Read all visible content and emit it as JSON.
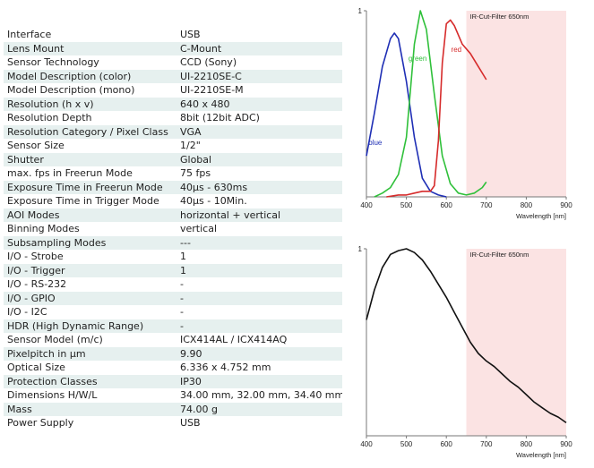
{
  "specs": [
    {
      "label": "Interface",
      "value": "USB"
    },
    {
      "label": "Lens Mount",
      "value": "C-Mount"
    },
    {
      "label": "Sensor Technology",
      "value": "CCD (Sony)"
    },
    {
      "label": "Model Description (color)",
      "value": "UI-2210SE-C"
    },
    {
      "label": "Model Description (mono)",
      "value": "UI-2210SE-M"
    },
    {
      "label": "Resolution (h x v)",
      "value": "640 x 480"
    },
    {
      "label": "Resolution Depth",
      "value": "8bit (12bit ADC)"
    },
    {
      "label": "Resolution Category / Pixel Class",
      "value": "VGA"
    },
    {
      "label": "Sensor Size",
      "value": "1/2\""
    },
    {
      "label": "Shutter",
      "value": "Global"
    },
    {
      "label": "max. fps in Freerun Mode",
      "value": "75 fps"
    },
    {
      "label": "Exposure Time in Freerun Mode",
      "value": "40µs - 630ms"
    },
    {
      "label": "Exposure Time in Trigger Mode",
      "value": "40µs - 10Min."
    },
    {
      "label": "AOI Modes",
      "value": "horizontal + vertical"
    },
    {
      "label": "Binning Modes",
      "value": "vertical"
    },
    {
      "label": "Subsampling Modes",
      "value": "---"
    },
    {
      "label": "I/O - Strobe",
      "value": "1"
    },
    {
      "label": "I/O - Trigger",
      "value": "1"
    },
    {
      "label": "I/O - RS-232",
      "value": "-"
    },
    {
      "label": "I/O - GPIO",
      "value": "-"
    },
    {
      "label": "I/O - I2C",
      "value": "-"
    },
    {
      "label": "HDR (High Dynamic Range)",
      "value": "-"
    },
    {
      "label": "Sensor Model (m/c)",
      "value": "ICX414AL / ICX414AQ"
    },
    {
      "label": "Pixelpitch in µm",
      "value": "9.90"
    },
    {
      "label": "Optical Size",
      "value": "6.336 x 4.752 mm"
    },
    {
      "label": "Protection Classes",
      "value": "IP30"
    },
    {
      "label": "Dimensions H/W/L",
      "value": "34.00 mm, 32.00 mm, 34.40 mm"
    },
    {
      "label": "Mass",
      "value": "74.00 g"
    },
    {
      "label": "Power Supply",
      "value": "USB"
    }
  ],
  "colors": {
    "row_alt": "#e6f0ef",
    "ir_region": "#fbe3e3",
    "blue": "#1f2fb5",
    "green": "#2fc03a",
    "red": "#d62b2b",
    "mono": "#111111"
  },
  "chart_data": [
    {
      "type": "line",
      "xlim": [
        400,
        900
      ],
      "ylim": [
        0,
        1
      ],
      "xticks": [
        "400",
        "500",
        "600",
        "700",
        "800",
        "900"
      ],
      "yticks": [
        "1"
      ],
      "xlabel": "Wavelength [nm]",
      "shaded_region": {
        "from": 650,
        "to": 900,
        "label": "IR-Cut-Filter 650nm"
      },
      "series": [
        {
          "name": "blue",
          "color": "#1f2fb5",
          "x": [
            400,
            420,
            440,
            460,
            470,
            480,
            500,
            520,
            540,
            560,
            580,
            600
          ],
          "y": [
            0.22,
            0.45,
            0.7,
            0.85,
            0.88,
            0.85,
            0.62,
            0.32,
            0.1,
            0.03,
            0.01,
            0.0
          ]
        },
        {
          "name": "green",
          "color": "#2fc03a",
          "x": [
            420,
            440,
            460,
            480,
            500,
            520,
            535,
            550,
            570,
            590,
            610,
            630,
            650,
            670,
            690,
            700
          ],
          "y": [
            0.0,
            0.02,
            0.05,
            0.12,
            0.32,
            0.82,
            1.0,
            0.9,
            0.55,
            0.22,
            0.07,
            0.02,
            0.01,
            0.02,
            0.05,
            0.08
          ]
        },
        {
          "name": "red",
          "color": "#d62b2b",
          "x": [
            450,
            480,
            500,
            520,
            540,
            560,
            570,
            580,
            590,
            600,
            610,
            620,
            640,
            660,
            680,
            700
          ],
          "y": [
            0.0,
            0.01,
            0.01,
            0.02,
            0.03,
            0.03,
            0.06,
            0.3,
            0.72,
            0.93,
            0.95,
            0.92,
            0.82,
            0.77,
            0.7,
            0.63
          ]
        }
      ],
      "series_labels": [
        "blue",
        "green",
        "red"
      ]
    },
    {
      "type": "line",
      "xlim": [
        400,
        900
      ],
      "ylim": [
        0,
        1
      ],
      "xticks": [
        "400",
        "500",
        "600",
        "700",
        "800",
        "900"
      ],
      "yticks": [
        "1"
      ],
      "xlabel": "Wavelength [nm]",
      "shaded_region": {
        "from": 650,
        "to": 900,
        "label": "IR-Cut-Filter 650nm"
      },
      "series": [
        {
          "color": "#111111",
          "x": [
            400,
            420,
            440,
            460,
            480,
            500,
            520,
            540,
            560,
            580,
            600,
            620,
            640,
            660,
            680,
            700,
            720,
            740,
            760,
            780,
            800,
            820,
            840,
            860,
            880,
            900
          ],
          "y": [
            0.62,
            0.78,
            0.9,
            0.97,
            0.99,
            1.0,
            0.98,
            0.94,
            0.88,
            0.81,
            0.74,
            0.66,
            0.58,
            0.5,
            0.44,
            0.4,
            0.37,
            0.33,
            0.29,
            0.26,
            0.22,
            0.18,
            0.15,
            0.12,
            0.1,
            0.07
          ]
        }
      ]
    }
  ]
}
